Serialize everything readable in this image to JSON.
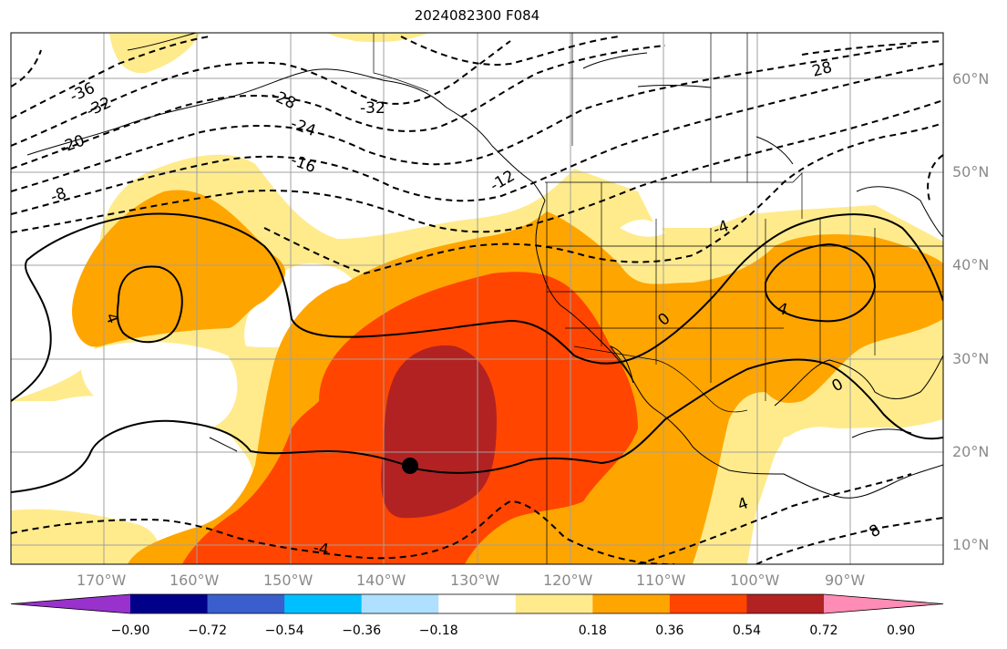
{
  "title": "2024082300 F084",
  "lat_labels": [
    "60°N",
    "50°N",
    "40°N",
    "30°N",
    "20°N",
    "10°N"
  ],
  "lon_labels": [
    "170°W",
    "160°W",
    "150°W",
    "140°W",
    "130°W",
    "120°W",
    "110°W",
    "100°W",
    "90°W"
  ],
  "contour_labels": [
    "-36",
    "-32",
    "-28",
    "-24",
    "-20",
    "-16",
    "-12",
    "-8",
    "-32",
    "28",
    "-4",
    "0",
    "0",
    "4",
    "4",
    "4",
    "-4",
    "8",
    "-4"
  ],
  "colorbar": {
    "ticks": [
      "−0.90",
      "−0.72",
      "−0.54",
      "−0.36",
      "−0.18",
      "0.18",
      "0.36",
      "0.54",
      "0.72",
      "0.90"
    ],
    "colors": [
      "#9932cc",
      "#00008b",
      "#3a5fcd",
      "#00bfff",
      "#b0e0ff",
      "#ffffff",
      "#ffeb8c",
      "#ffa500",
      "#ff4500",
      "#b22222",
      "#ff8cb4"
    ]
  }
}
